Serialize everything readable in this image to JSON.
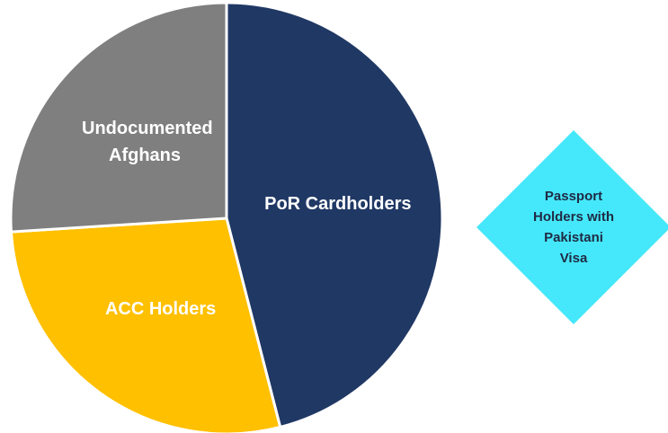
{
  "chart_data": {
    "type": "pie",
    "categories": [
      "PoR Cardholders",
      "ACC Holders",
      "Undocumented Afghans"
    ],
    "values": [
      46,
      28,
      26
    ],
    "colors": [
      "#203864",
      "#ffc000",
      "#7f7f7f"
    ],
    "annotation": {
      "text": "Passport Holders with Pakistani Visa",
      "color": "#45e8fa"
    }
  }
}
